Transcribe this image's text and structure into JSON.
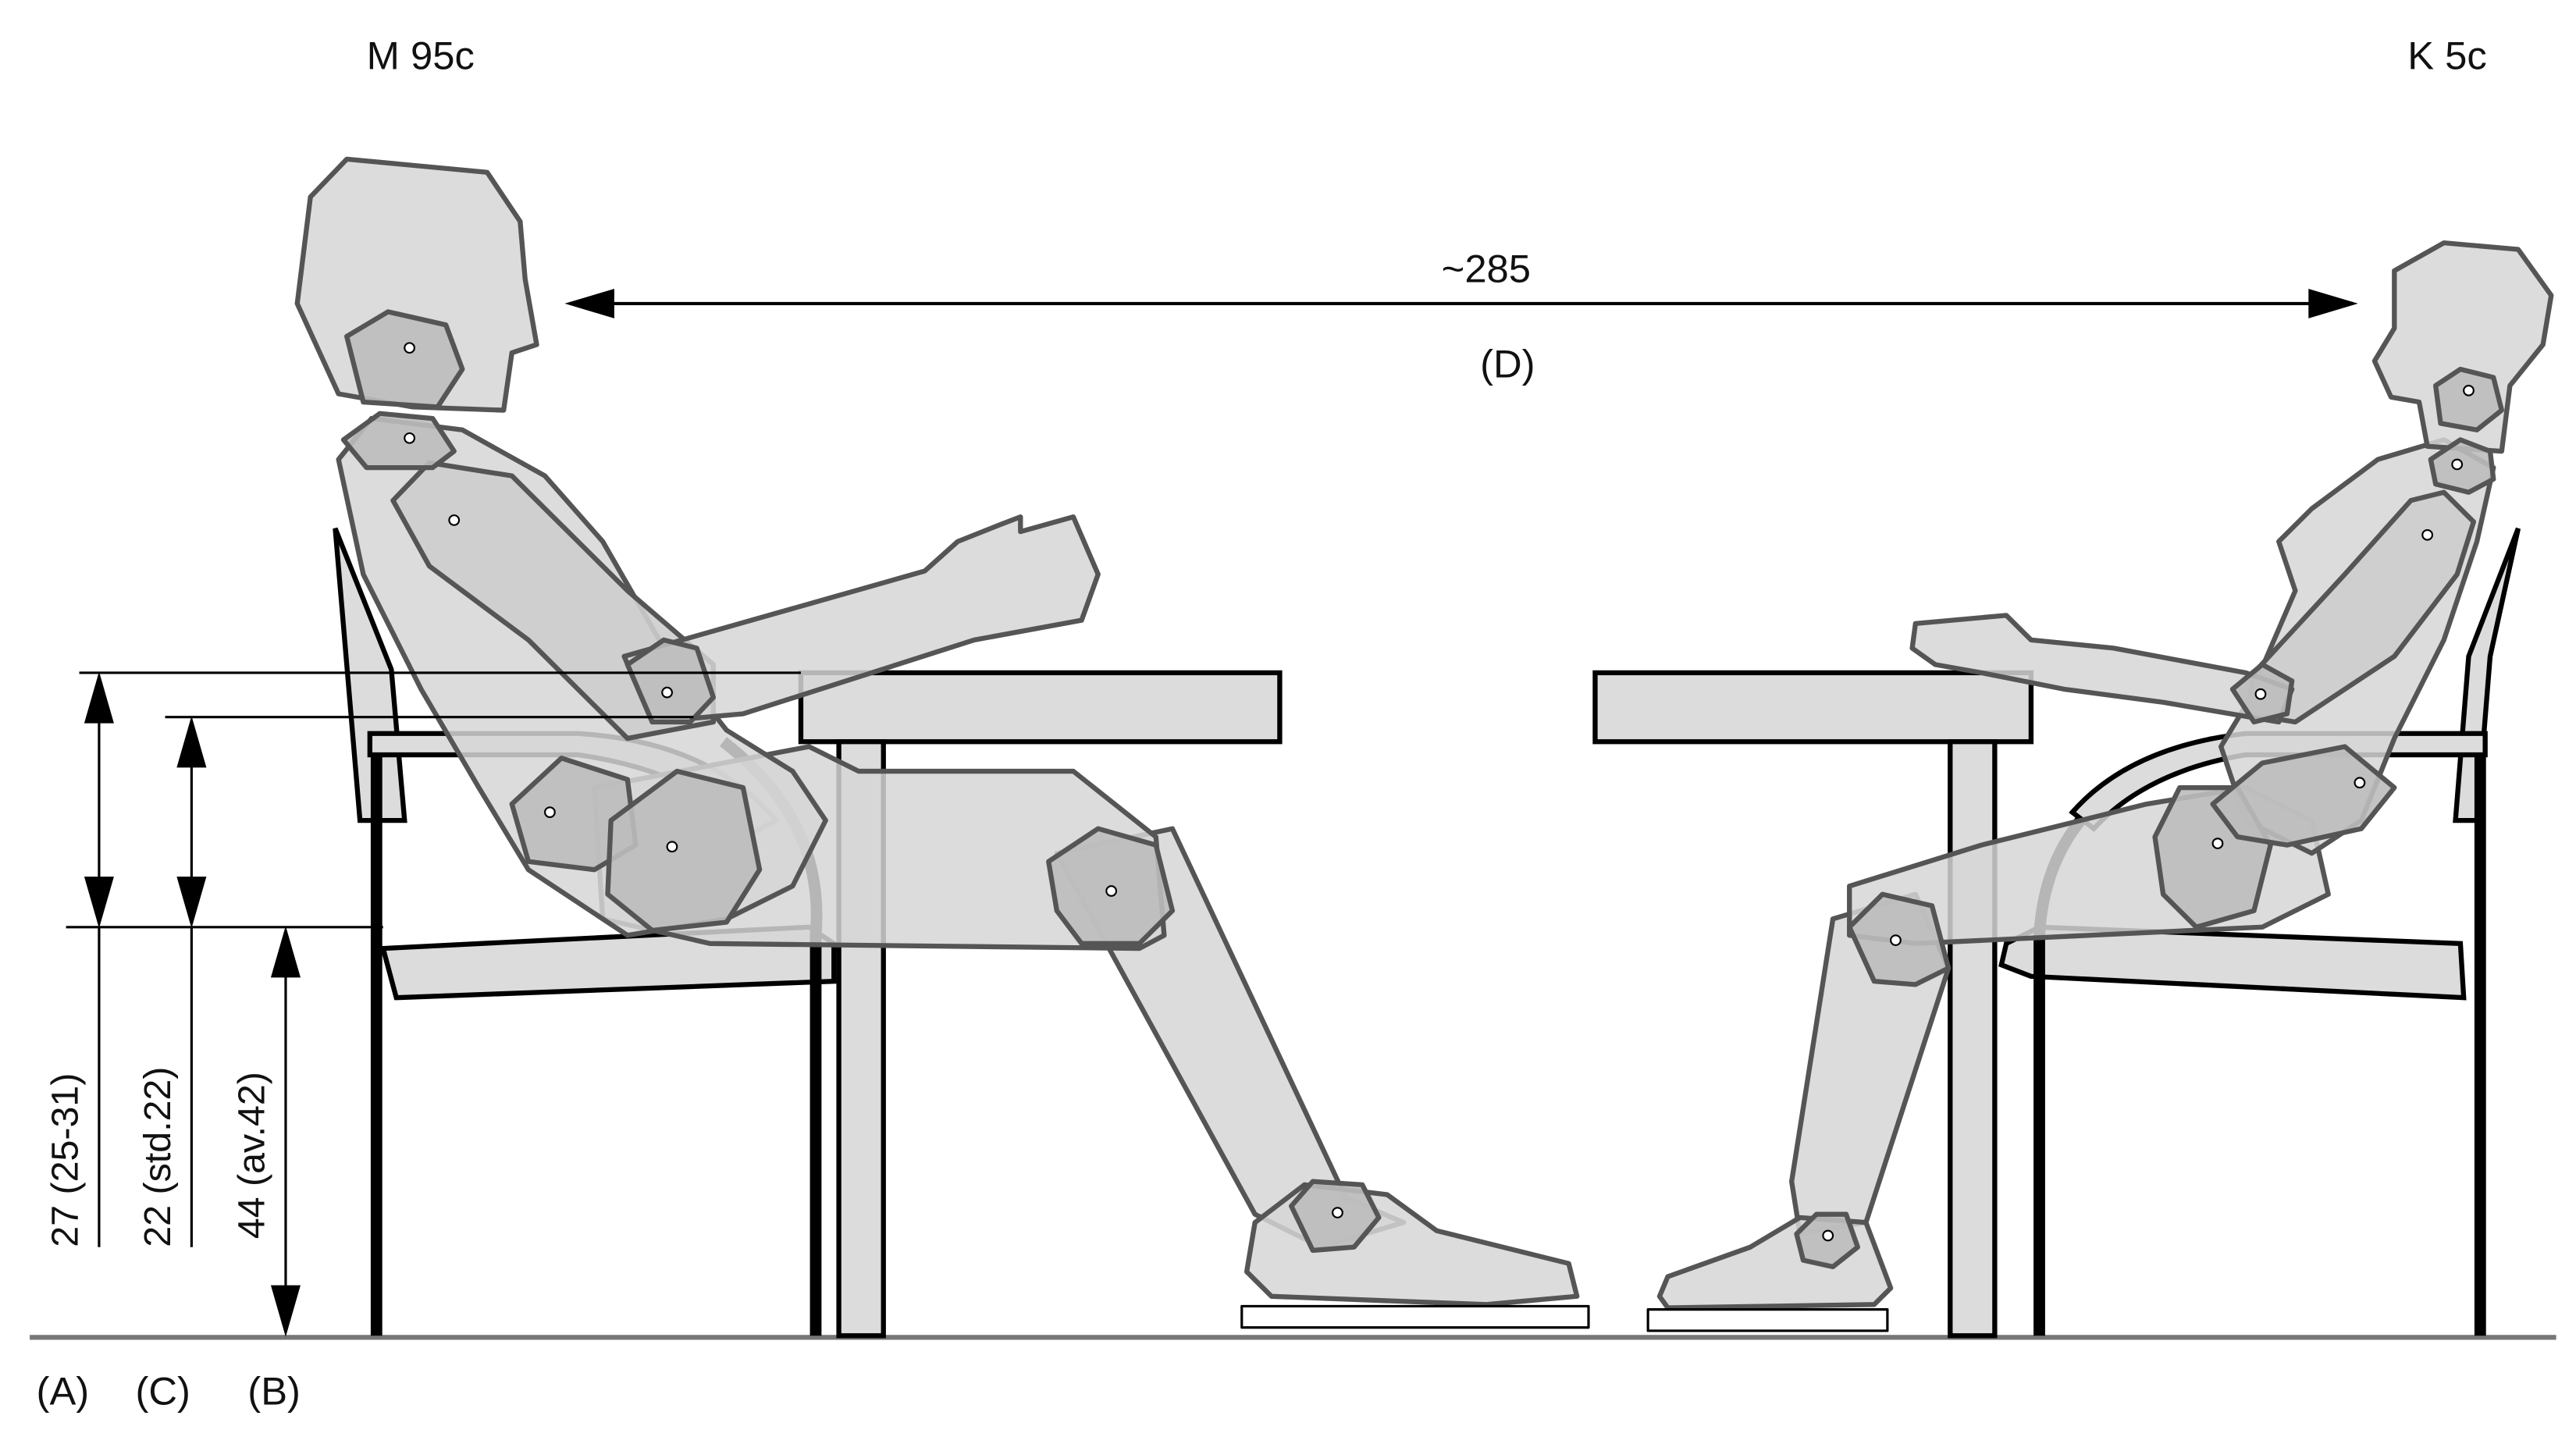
{
  "figures": {
    "left_label": "M 95c",
    "right_label": "K 5c"
  },
  "distance": {
    "value": "~285",
    "tag": "(D)"
  },
  "dimensions": {
    "a_value": "27 (25-31)",
    "c_value": "22 (std.22)",
    "b_value": "44 (av.42)",
    "a_tag": "(A)",
    "c_tag": "(C)",
    "b_tag": "(B)"
  },
  "colors": {
    "body_fill": "#d6d6d6",
    "joint_fill": "#bcbcbc",
    "outline": "#555555",
    "furniture_fill": "#dcdcdc",
    "line": "#000000",
    "floor": "#777777"
  }
}
